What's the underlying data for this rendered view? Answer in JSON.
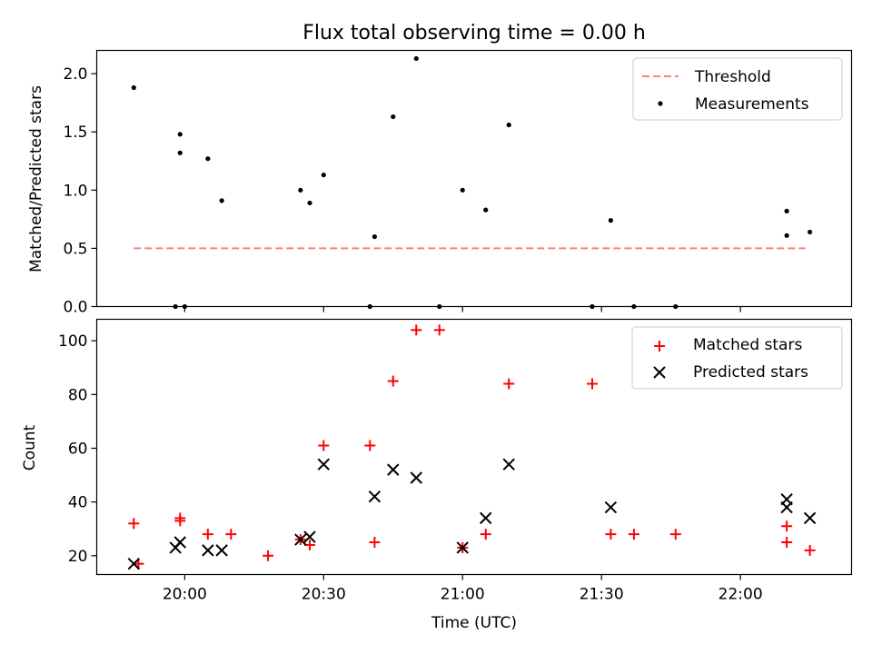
{
  "chart_data": [
    {
      "type": "scatter",
      "title": "Flux total observing time = 0.00 h",
      "ylabel": "Matched/Predicted stars",
      "xlabel": "",
      "xlim": [
        "19:41",
        "22:24"
      ],
      "ylim": [
        0,
        2.2
      ],
      "yticks": [
        0.0,
        0.5,
        1.0,
        1.5,
        2.0
      ],
      "ytick_labels": [
        "0.0",
        "0.5",
        "1.0",
        "1.5",
        "2.0"
      ],
      "xticks": [
        "20:00",
        "20:30",
        "21:00",
        "21:30",
        "22:00"
      ],
      "grid": false,
      "legend_position": "top-right",
      "series": [
        {
          "name": "Threshold",
          "kind": "line",
          "style": "dashed",
          "color": "#ff7f7f",
          "x": [
            "19:49",
            "22:14"
          ],
          "y": [
            0.5,
            0.5
          ]
        },
        {
          "name": "Measurements",
          "kind": "scatter",
          "marker": "dot",
          "color": "#000000",
          "x": [
            "19:49",
            "19:59",
            "19:59",
            "20:05",
            "20:00",
            "20:08",
            "20:25",
            "20:27",
            "20:30",
            "20:40",
            "20:41",
            "20:45",
            "20:50",
            "20:55",
            "21:00",
            "21:05",
            "21:10",
            "21:28",
            "21:32",
            "21:37",
            "21:46",
            "22:10",
            "22:10",
            "22:15",
            "19:58"
          ],
          "y": [
            1.88,
            1.48,
            1.32,
            1.27,
            0.0,
            0.91,
            1.0,
            0.89,
            1.13,
            0.0,
            0.6,
            1.63,
            2.13,
            0.0,
            1.0,
            0.83,
            1.56,
            0.0,
            0.74,
            0.0,
            0.0,
            0.82,
            0.61,
            0.64,
            0.0
          ]
        }
      ]
    },
    {
      "type": "scatter",
      "title": "",
      "ylabel": "Count",
      "xlabel": "Time (UTC)",
      "xlim": [
        "19:41",
        "22:24"
      ],
      "ylim": [
        13,
        108
      ],
      "yticks": [
        20,
        40,
        60,
        80,
        100
      ],
      "ytick_labels": [
        "20",
        "40",
        "60",
        "80",
        "100"
      ],
      "xticks": [
        "20:00",
        "20:30",
        "21:00",
        "21:30",
        "22:00"
      ],
      "grid": false,
      "legend_position": "top-right",
      "series": [
        {
          "name": "Matched stars",
          "kind": "scatter",
          "marker": "plus",
          "color": "#ff0000",
          "x": [
            "19:49",
            "19:50",
            "19:59",
            "19:59",
            "20:05",
            "20:10",
            "20:18",
            "20:25",
            "20:27",
            "20:30",
            "20:40",
            "20:41",
            "20:45",
            "20:50",
            "20:55",
            "21:00",
            "21:05",
            "21:10",
            "21:28",
            "21:32",
            "21:37",
            "21:46",
            "22:10",
            "22:10",
            "22:15"
          ],
          "y": [
            32,
            17,
            34,
            33,
            28,
            28,
            20,
            26,
            24,
            61,
            61,
            25,
            85,
            104,
            104,
            23,
            28,
            84,
            84,
            28,
            28,
            28,
            31,
            25,
            22
          ]
        },
        {
          "name": "Predicted stars",
          "kind": "scatter",
          "marker": "x",
          "color": "#000000",
          "x": [
            "19:49",
            "19:58",
            "19:59",
            "20:05",
            "20:08",
            "20:25",
            "20:27",
            "20:30",
            "20:41",
            "20:45",
            "20:50",
            "21:00",
            "21:05",
            "21:10",
            "21:32",
            "22:10",
            "22:10",
            "22:15"
          ],
          "y": [
            17,
            23,
            25,
            22,
            22,
            26,
            27,
            54,
            42,
            52,
            49,
            23,
            34,
            54,
            38,
            41,
            38,
            34
          ]
        }
      ]
    }
  ]
}
